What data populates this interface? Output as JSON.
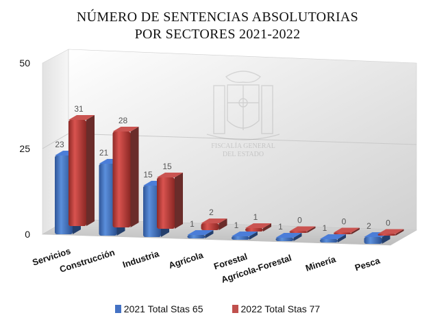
{
  "chart_data": {
    "type": "bar",
    "title_line1": "NÚMERO DE SENTENCIAS ABSOLUTORIAS",
    "title_line2": "POR SECTORES 2021-2022",
    "categories": [
      "Servicios",
      "Construcción",
      "Industria",
      "Agrícola",
      "Forestal",
      "Agrícola-Forestal",
      "Minería",
      "Pesca"
    ],
    "series": [
      {
        "name": "2021 Total Stas 65",
        "values": [
          23,
          21,
          15,
          1,
          1,
          1,
          1,
          2
        ],
        "color": "#4472C4"
      },
      {
        "name": "2022 Total Stas 77",
        "values": [
          31,
          28,
          15,
          2,
          1,
          0,
          0,
          0
        ],
        "color": "#C0504D"
      }
    ],
    "ylim": [
      0,
      50
    ],
    "yticks": [
      0,
      25,
      50
    ],
    "grid": true,
    "legend": "bottom",
    "style": "3d-clustered-column"
  },
  "watermark_text": [
    "FISCALÍA GENERAL",
    "DEL ESTADO"
  ]
}
